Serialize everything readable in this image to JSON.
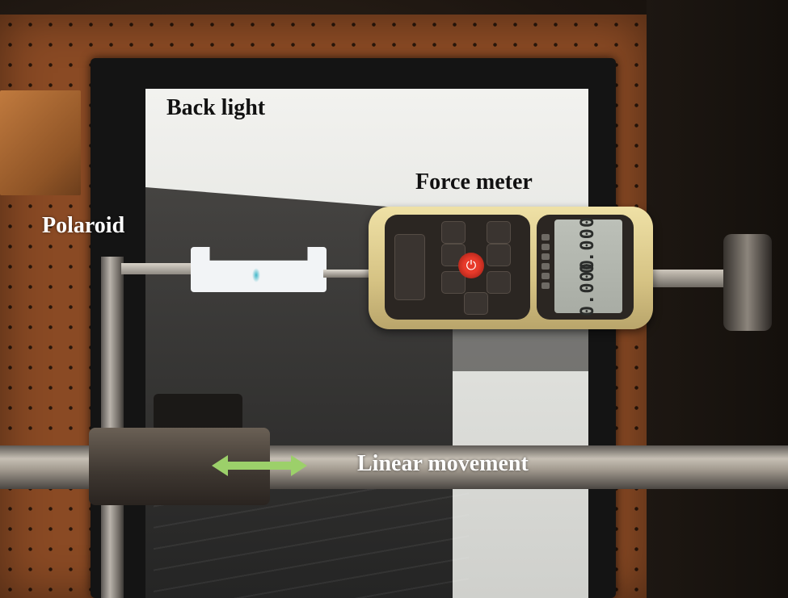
{
  "labels": {
    "back_light": "Back light",
    "force_meter": "Force meter",
    "polaroid": "Polaroid",
    "linear_movement": "Linear movement"
  },
  "meter": {
    "reading_top": "0.000",
    "reading_bottom": "0.000"
  },
  "colors": {
    "arrow": "#9cd06a",
    "pegboard": "#8a4a24",
    "meter_body": "#e6d597",
    "power_button": "#e83a2a"
  },
  "icons": {
    "linear_movement_arrow": "double-headed-arrow-icon",
    "power_button": "power-icon"
  }
}
